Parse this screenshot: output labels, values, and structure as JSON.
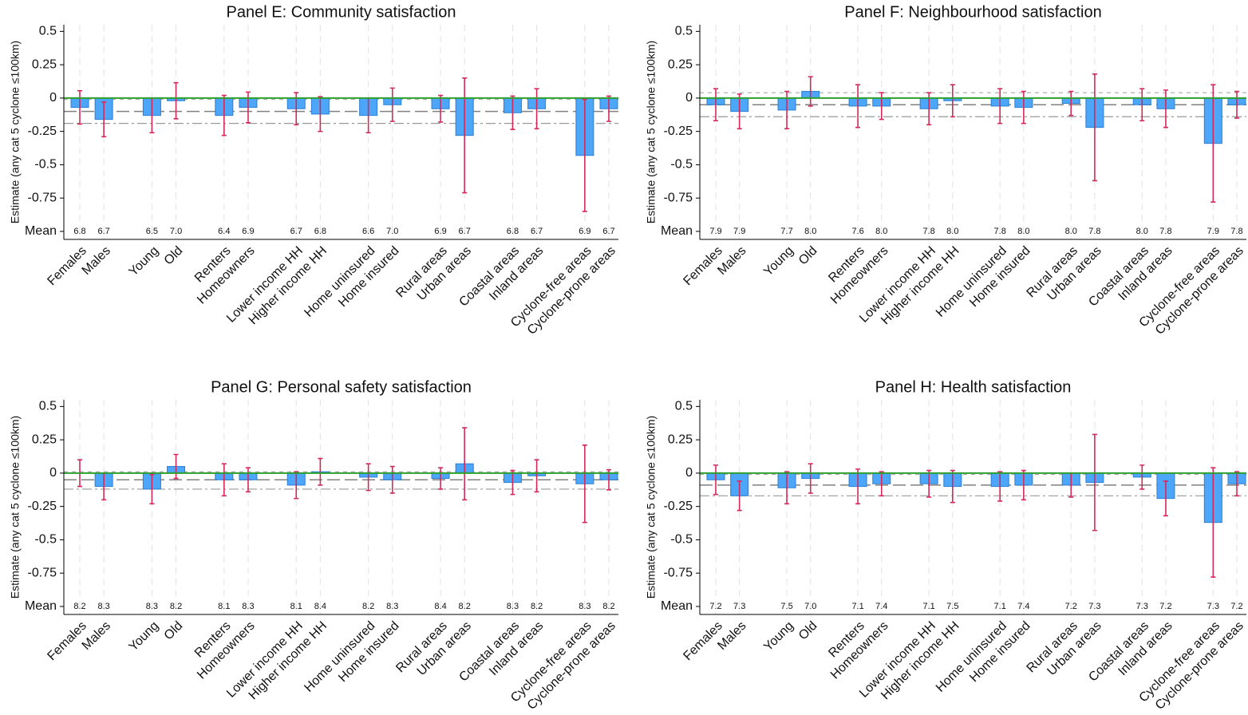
{
  "chart_data": [
    {
      "type": "bar",
      "title": "Panel E: Community satisfaction",
      "y_label": "Estimate (any cat 5 cyclone ≤100km)",
      "categories": [
        "Females",
        "Males",
        null,
        "Young",
        "Old",
        null,
        "Renters",
        "Homeowners",
        null,
        "Lower income HH",
        "Higher income HH",
        null,
        "Home uninsured",
        "Home insured",
        null,
        "Rural areas",
        "Urban areas",
        null,
        "Coastal areas",
        "Inland areas",
        null,
        "Cyclone-free areas",
        "Cyclone-prone areas"
      ],
      "values": [
        -0.07,
        -0.16,
        null,
        -0.13,
        -0.02,
        null,
        -0.13,
        -0.07,
        null,
        -0.08,
        -0.12,
        null,
        -0.13,
        -0.05,
        null,
        -0.08,
        -0.28,
        null,
        -0.11,
        -0.08,
        null,
        -0.43,
        -0.08
      ],
      "errors": [
        0.125,
        0.13,
        null,
        0.13,
        0.135,
        null,
        0.15,
        0.115,
        null,
        0.12,
        0.13,
        null,
        0.13,
        0.125,
        null,
        0.1,
        0.43,
        null,
        0.125,
        0.15,
        null,
        0.42,
        0.095
      ],
      "mean_labels": [
        "6.8",
        "6.7",
        null,
        "6.5",
        "7.0",
        null,
        "6.4",
        "6.9",
        null,
        "6.7",
        "6.8",
        null,
        "6.6",
        "7.0",
        null,
        "6.9",
        "6.7",
        null,
        "6.8",
        "6.7",
        null,
        "6.9",
        "6.7"
      ],
      "reference": {
        "estimate": -0.1,
        "ci_low": -0.19,
        "ci_high": -0.01
      },
      "ylim": [
        -1.06,
        0.55
      ],
      "yticks": [
        0.5,
        0.25,
        0,
        -0.25,
        -0.5,
        -0.75,
        {
          "value": -1,
          "label": "Mean"
        }
      ],
      "color": "#4da6f7",
      "error_color": "#d6295a",
      "zero_line_color": "#2ca02c",
      "xgrid": true
    },
    {
      "type": "bar",
      "title": "Panel F: Neighbourhood satisfaction",
      "y_label": "Estimate (any cat 5 cyclone ≤100km)",
      "categories": [
        "Females",
        "Males",
        null,
        "Young",
        "Old",
        null,
        "Renters",
        "Homeowners",
        null,
        "Lower income HH",
        "Higher income HH",
        null,
        "Home uninsured",
        "Home insured",
        null,
        "Rural areas",
        "Urban areas",
        null,
        "Coastal areas",
        "Inland areas",
        null,
        "Cyclone-free areas",
        "Cyclone-prone areas"
      ],
      "values": [
        -0.05,
        -0.1,
        null,
        -0.09,
        0.05,
        null,
        -0.06,
        -0.06,
        null,
        -0.08,
        -0.02,
        null,
        -0.06,
        -0.07,
        null,
        -0.04,
        -0.22,
        null,
        -0.05,
        -0.08,
        null,
        -0.34,
        -0.05
      ],
      "errors": [
        0.12,
        0.13,
        null,
        0.14,
        0.11,
        null,
        0.16,
        0.1,
        null,
        0.12,
        0.12,
        null,
        0.13,
        0.12,
        null,
        0.09,
        0.4,
        null,
        0.12,
        0.14,
        null,
        0.44,
        0.1
      ],
      "mean_labels": [
        "7.9",
        "7.9",
        null,
        "7.7",
        "8.0",
        null,
        "7.6",
        "8.0",
        null,
        "7.8",
        "8.0",
        null,
        "7.8",
        "8.0",
        null,
        "8.0",
        "7.8",
        null,
        "8.0",
        "7.8",
        null,
        "7.9",
        "7.8"
      ],
      "reference": {
        "estimate": -0.05,
        "ci_low": -0.14,
        "ci_high": 0.04
      },
      "ylim": [
        -1.06,
        0.55
      ],
      "yticks": [
        0.5,
        0.25,
        0,
        -0.25,
        -0.5,
        -0.75,
        {
          "value": -1,
          "label": "Mean"
        }
      ],
      "color": "#4da6f7",
      "error_color": "#d6295a",
      "zero_line_color": "#2ca02c",
      "xgrid": true
    },
    {
      "type": "bar",
      "title": "Panel G: Personal safety satisfaction",
      "y_label": "Estimate (any cat 5 cyclone ≤100km)",
      "categories": [
        "Females",
        "Males",
        null,
        "Young",
        "Old",
        null,
        "Renters",
        "Homeowners",
        null,
        "Lower income HH",
        "Higher income HH",
        null,
        "Home uninsured",
        "Home insured",
        null,
        "Rural areas",
        "Urban areas",
        null,
        "Coastal areas",
        "Inland areas",
        null,
        "Cyclone-free areas",
        "Cyclone-prone areas"
      ],
      "values": [
        0,
        -0.1,
        null,
        -0.12,
        0.05,
        null,
        -0.05,
        -0.05,
        null,
        -0.09,
        0.01,
        null,
        -0.03,
        -0.05,
        null,
        -0.04,
        0.07,
        null,
        -0.07,
        -0.02,
        null,
        -0.08,
        -0.05
      ],
      "errors": [
        0.1,
        0.1,
        null,
        0.11,
        0.09,
        null,
        0.12,
        0.09,
        null,
        0.1,
        0.1,
        null,
        0.1,
        0.1,
        null,
        0.08,
        0.27,
        null,
        0.09,
        0.12,
        null,
        0.29,
        0.075
      ],
      "mean_labels": [
        "8.2",
        "8.3",
        null,
        "8.3",
        "8.2",
        null,
        "8.1",
        "8.3",
        null,
        "8.1",
        "8.4",
        null,
        "8.2",
        "8.3",
        null,
        "8.4",
        "8.2",
        null,
        "8.3",
        "8.2",
        null,
        "8.3",
        "8.2"
      ],
      "reference": {
        "estimate": -0.05,
        "ci_low": -0.12,
        "ci_high": 0.01
      },
      "ylim": [
        -1.06,
        0.55
      ],
      "yticks": [
        0.5,
        0.25,
        0,
        -0.25,
        -0.5,
        -0.75,
        {
          "value": -1,
          "label": "Mean"
        }
      ],
      "color": "#4da6f7",
      "error_color": "#d6295a",
      "zero_line_color": "#2ca02c",
      "xgrid": true
    },
    {
      "type": "bar",
      "title": "Panel H: Health satisfaction",
      "y_label": "Estimate (any cat 5 cyclone ≤100km)",
      "categories": [
        "Females",
        "Males",
        null,
        "Young",
        "Old",
        null,
        "Renters",
        "Homeowners",
        null,
        "Lower income HH",
        "Higher income HH",
        null,
        "Home uninsured",
        "Home insured",
        null,
        "Rural areas",
        "Urban areas",
        null,
        "Coastal areas",
        "Inland areas",
        null,
        "Cyclone-free areas",
        "Cyclone-prone areas"
      ],
      "values": [
        -0.05,
        -0.17,
        null,
        -0.11,
        -0.04,
        null,
        -0.1,
        -0.08,
        null,
        -0.08,
        -0.1,
        null,
        -0.1,
        -0.09,
        null,
        -0.09,
        -0.07,
        null,
        -0.03,
        -0.19,
        null,
        -0.37,
        -0.08
      ],
      "errors": [
        0.11,
        0.11,
        null,
        0.12,
        0.11,
        null,
        0.13,
        0.09,
        null,
        0.1,
        0.12,
        null,
        0.11,
        0.11,
        null,
        0.09,
        0.36,
        null,
        0.09,
        0.13,
        null,
        0.41,
        0.09
      ],
      "mean_labels": [
        "7.2",
        "7.3",
        null,
        "7.5",
        "7.0",
        null,
        "7.1",
        "7.4",
        null,
        "7.1",
        "7.5",
        null,
        "7.1",
        "7.4",
        null,
        "7.2",
        "7.3",
        null,
        "7.3",
        "7.2",
        null,
        "7.3",
        "7.2"
      ],
      "reference": {
        "estimate": -0.09,
        "ci_low": -0.17,
        "ci_high": -0.01
      },
      "ylim": [
        -1.06,
        0.55
      ],
      "yticks": [
        0.5,
        0.25,
        0,
        -0.25,
        -0.5,
        -0.75,
        {
          "value": -1,
          "label": "Mean"
        }
      ],
      "color": "#4da6f7",
      "error_color": "#d6295a",
      "zero_line_color": "#2ca02c",
      "xgrid": true
    }
  ]
}
